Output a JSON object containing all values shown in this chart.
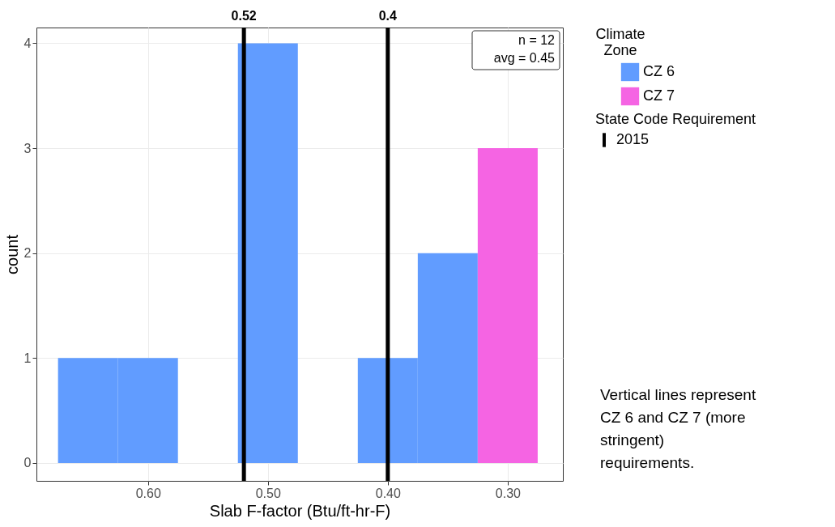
{
  "chart_data": {
    "type": "histogram",
    "xlabel": "Slab F-factor (Btu/ft-hr-F)",
    "ylabel": "count",
    "legend_title": "Climate\nZone",
    "legend": "right",
    "grid": true,
    "bins": [
      0.275,
      0.325,
      0.375,
      0.425,
      0.475,
      0.525,
      0.575,
      0.625,
      0.675
    ],
    "series": [
      {
        "name": "CZ 6",
        "color": "#619cff",
        "values": [
          0,
          2,
          1,
          0,
          4,
          0,
          1,
          1
        ]
      },
      {
        "name": "CZ 7",
        "color": "#f564e3",
        "values": [
          3,
          0,
          0,
          0,
          0,
          0,
          0,
          0
        ]
      }
    ],
    "xlim": [
      0.693,
      0.254
    ],
    "xticks": [
      {
        "value": 0.6,
        "label": "0.60"
      },
      {
        "value": 0.5,
        "label": "0.50"
      },
      {
        "value": 0.4,
        "label": "0.40"
      },
      {
        "value": 0.3,
        "label": "0.30"
      }
    ],
    "ylim": [
      -0.17,
      4.15
    ],
    "yticks": [
      0,
      1,
      2,
      3,
      4
    ],
    "ref_lines": [
      {
        "axis": "x",
        "value": 0.52,
        "label": "0.52",
        "color": "#000000"
      },
      {
        "axis": "x",
        "value": 0.4,
        "label": "0.4",
        "color": "#000000"
      }
    ],
    "annotations": [
      "n = 12",
      "avg = 0.45",
      "State Code Requirement",
      "2015",
      "Vertical lines represent CZ 6 and CZ 7 (more stringent) requirements."
    ]
  }
}
